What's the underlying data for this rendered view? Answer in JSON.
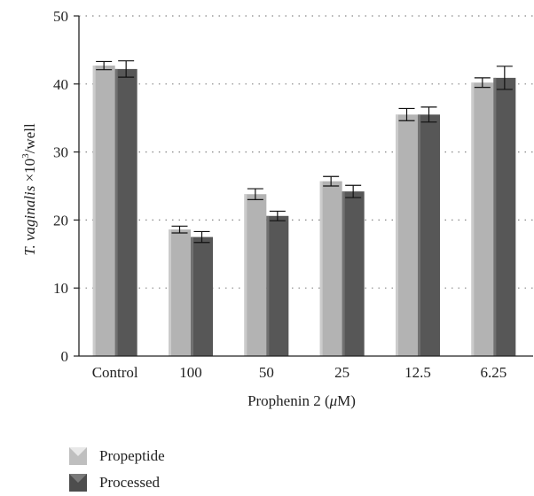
{
  "chart_data": {
    "type": "bar",
    "categories": [
      "Control",
      "100",
      "50",
      "25",
      "12.5",
      "6.25"
    ],
    "series": [
      {
        "name": "Propeptide",
        "values": [
          42.7,
          18.6,
          23.8,
          25.7,
          35.5,
          40.2
        ],
        "errors": [
          0.6,
          0.5,
          0.8,
          0.7,
          0.9,
          0.7
        ]
      },
      {
        "name": "Processed",
        "values": [
          42.2,
          17.5,
          20.6,
          24.2,
          35.5,
          40.9
        ],
        "errors": [
          1.2,
          0.8,
          0.7,
          0.9,
          1.1,
          1.7
        ]
      }
    ],
    "xlabel_main": "Prophenin 2 (",
    "xlabel_unit_mu": "μ",
    "xlabel_unit_rest": "M)",
    "ylabel_italic": "T. vaginalis",
    "ylabel_rest": " ×10",
    "ylabel_sup": "3",
    "ylabel_tail": "/well",
    "ylim": [
      0,
      50
    ],
    "yticks": [
      "0",
      "10",
      "20",
      "30",
      "40",
      "50"
    ],
    "grid": true,
    "legend_position": "bottom-left",
    "colors": {
      "propeptide": "#b3b3b3",
      "processed": "#575757",
      "grid": "#888888"
    }
  },
  "legend": {
    "items": [
      {
        "label": "Propeptide",
        "color": "#bfbfbf",
        "edge": "#e8e8e8"
      },
      {
        "label": "Processed",
        "color": "#4d4d4d",
        "edge": "#7a7a7a"
      }
    ]
  }
}
